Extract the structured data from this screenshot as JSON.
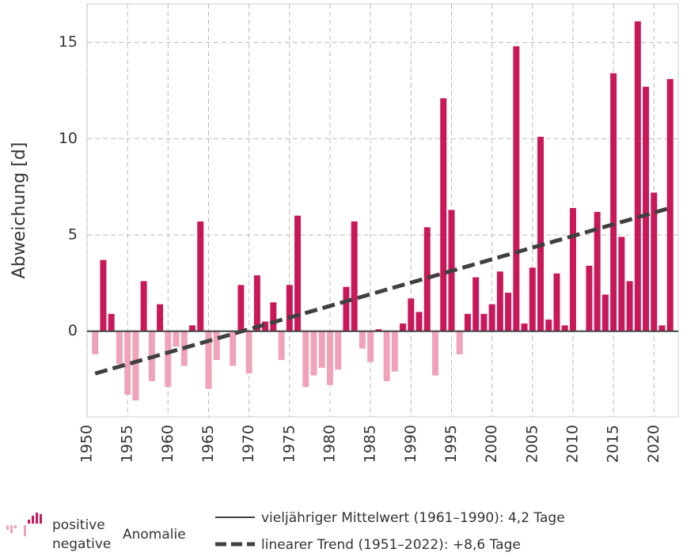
{
  "chart_data": {
    "type": "bar",
    "ylabel": "Abweichung [d]",
    "x": [
      1951,
      1952,
      1953,
      1954,
      1955,
      1956,
      1957,
      1958,
      1959,
      1960,
      1961,
      1962,
      1963,
      1964,
      1965,
      1966,
      1967,
      1968,
      1969,
      1970,
      1971,
      1972,
      1973,
      1974,
      1975,
      1976,
      1977,
      1978,
      1979,
      1980,
      1981,
      1982,
      1983,
      1984,
      1985,
      1986,
      1987,
      1988,
      1989,
      1990,
      1991,
      1992,
      1993,
      1994,
      1995,
      1996,
      1997,
      1998,
      1999,
      2000,
      2001,
      2002,
      2003,
      2004,
      2005,
      2006,
      2007,
      2008,
      2009,
      2010,
      2011,
      2012,
      2013,
      2014,
      2015,
      2016,
      2017,
      2018,
      2019,
      2020,
      2021,
      2022
    ],
    "values": [
      -1.2,
      3.7,
      0.9,
      -1.7,
      -3.3,
      -3.6,
      2.6,
      -2.6,
      1.4,
      -2.9,
      -0.8,
      -1.8,
      0.3,
      5.7,
      -3.0,
      -1.5,
      0,
      -1.8,
      2.4,
      -2.2,
      2.9,
      0.5,
      1.5,
      -1.5,
      2.4,
      6.0,
      -2.9,
      -2.3,
      -1.9,
      -2.8,
      -2.0,
      2.3,
      5.7,
      -0.9,
      -1.6,
      0.1,
      -2.6,
      -2.1,
      0.4,
      1.7,
      1.0,
      5.4,
      -2.3,
      12.1,
      6.3,
      -1.2,
      0.9,
      2.8,
      0.9,
      1.4,
      3.1,
      2.0,
      14.8,
      0.4,
      3.3,
      10.1,
      0.6,
      3.0,
      0.3,
      6.4,
      0,
      3.4,
      6.2,
      1.9,
      13.4,
      4.9,
      2.6,
      16.1,
      12.7,
      7.2,
      0.3,
      13.1
    ],
    "positive_color": "#c8185a",
    "negative_color": "#f0a3b8",
    "trend": {
      "name": "linearer Trend (1951–2022): +8,6 Tage",
      "x": [
        1951,
        2022
      ],
      "values": [
        -2.2,
        6.4
      ],
      "color": "#404040"
    },
    "mean_line": {
      "name": "vieljähriger Mittelwert  (1961–1990): 4,2 Tage",
      "color": "#404040"
    },
    "legend": {
      "positive": "positive",
      "negative": "negative",
      "group": "Anomalie"
    },
    "xlim": [
      1950,
      2023
    ],
    "ylim": [
      -4.45,
      17
    ],
    "xticks": [
      1950,
      1955,
      1960,
      1965,
      1970,
      1975,
      1980,
      1985,
      1990,
      1995,
      2000,
      2005,
      2010,
      2015,
      2020
    ],
    "yticks": [
      0,
      5,
      10,
      15
    ],
    "grid": true
  }
}
